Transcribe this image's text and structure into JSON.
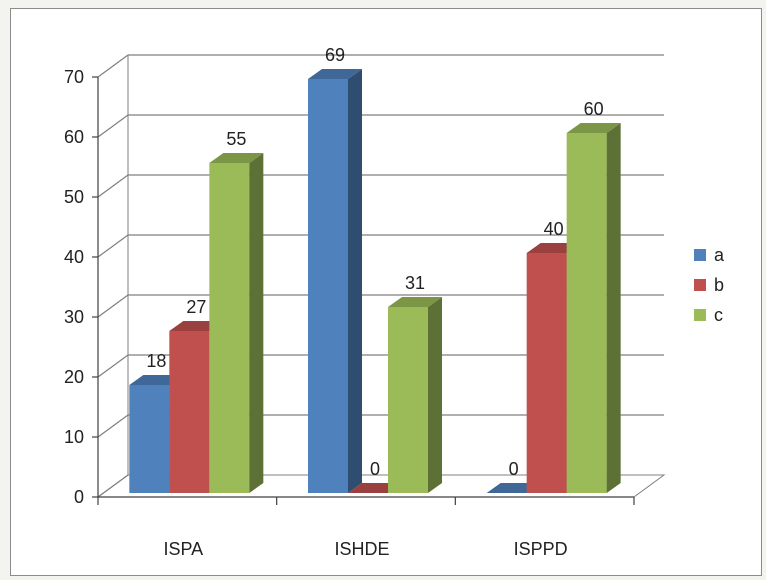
{
  "chart_data": {
    "type": "bar",
    "categories": [
      "ISPA",
      "ISHDE",
      "ISPPD"
    ],
    "series": [
      {
        "name": "a",
        "values": [
          18,
          69,
          0
        ],
        "color": "#4f81bd"
      },
      {
        "name": "b",
        "values": [
          27,
          0,
          40
        ],
        "color": "#c0504d"
      },
      {
        "name": "c",
        "values": [
          55,
          31,
          60
        ],
        "color": "#9bbb59"
      }
    ],
    "ylim": [
      0,
      70
    ],
    "yticks": [
      0,
      10,
      20,
      30,
      40,
      50,
      60,
      70
    ],
    "grid": true,
    "legend_position": "right",
    "style": "3d-clustered-column"
  }
}
